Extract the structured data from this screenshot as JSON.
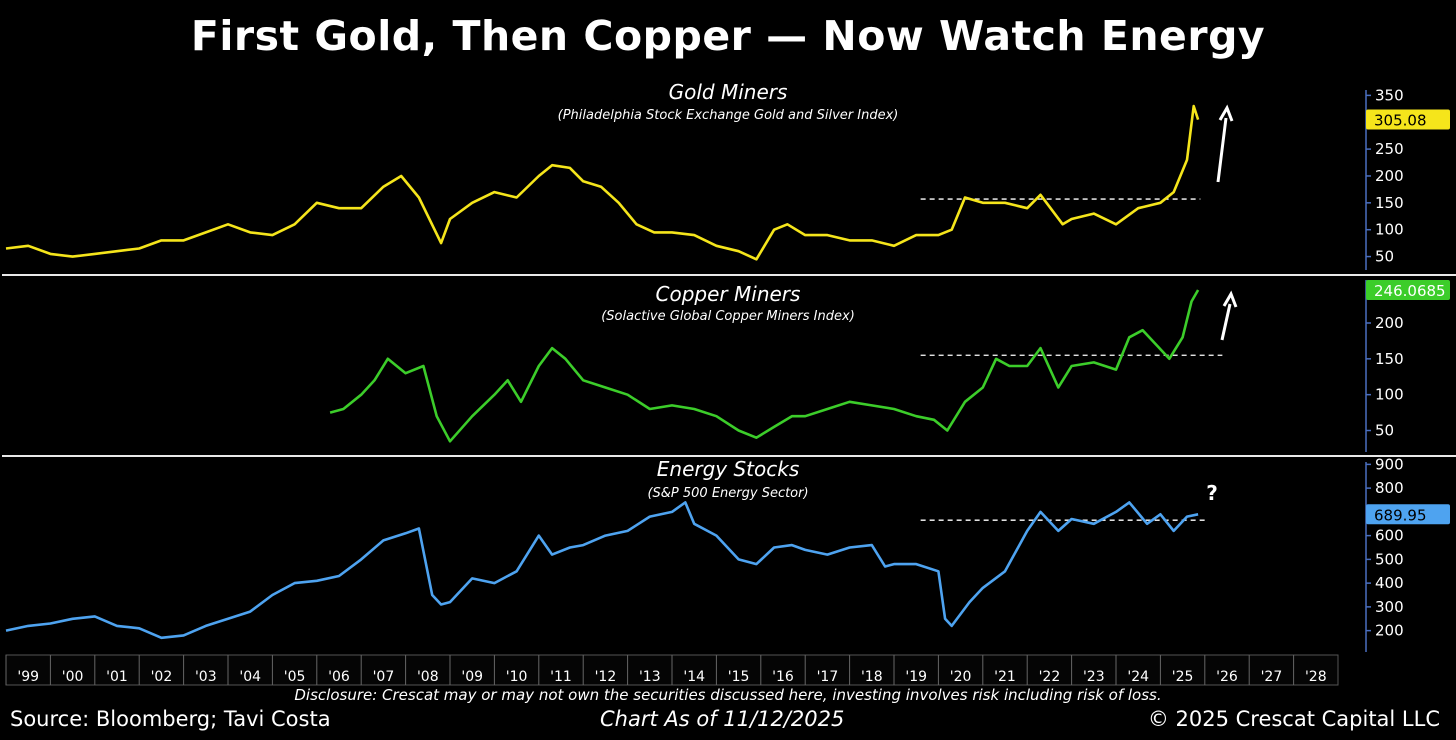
{
  "title": "First Gold, Then Copper — Now Watch Energy",
  "disclosure": "Disclosure: Crescat may or may not own the securities discussed here, investing involves risk including risk of loss.",
  "source": "Source: Bloomberg; Tavi Costa",
  "as_of": "Chart As of 11/12/2025",
  "copyright": "© 2025 Crescat Capital LLC",
  "x_ticks": [
    "'99",
    "'00",
    "'01",
    "'02",
    "'03",
    "'04",
    "'05",
    "'06",
    "'07",
    "'08",
    "'09",
    "'10",
    "'11",
    "'12",
    "'13",
    "'14",
    "'15",
    "'16",
    "'17",
    "'18",
    "'19",
    "'20",
    "'21",
    "'22",
    "'23",
    "'24",
    "'25",
    "'26",
    "'27",
    "'28"
  ],
  "chart_data": [
    {
      "type": "line",
      "title": "Gold Miners",
      "subtitle": "(Philadelphia Stock Exchange Gold and Silver Index)",
      "color": "#f5e51b",
      "last_value": "305.08",
      "y_ticks": [
        50,
        100,
        150,
        200,
        250,
        300,
        350
      ],
      "ylim": [
        25,
        360
      ],
      "resistance": 157,
      "annotation": "up-arrow",
      "x": [
        1999.0,
        1999.5,
        2000.0,
        2000.5,
        2001.0,
        2001.5,
        2002.0,
        2002.5,
        2003.0,
        2003.5,
        2004.0,
        2004.5,
        2005.0,
        2005.5,
        2006.0,
        2006.5,
        2007.0,
        2007.5,
        2007.9,
        2008.3,
        2008.8,
        2009.0,
        2009.5,
        2010.0,
        2010.5,
        2011.0,
        2011.3,
        2011.7,
        2012.0,
        2012.4,
        2012.8,
        2013.2,
        2013.6,
        2014.0,
        2014.5,
        2015.0,
        2015.5,
        2015.9,
        2016.3,
        2016.6,
        2017.0,
        2017.5,
        2018.0,
        2018.5,
        2019.0,
        2019.5,
        2020.0,
        2020.3,
        2020.6,
        2021.0,
        2021.5,
        2022.0,
        2022.3,
        2022.8,
        2023.0,
        2023.5,
        2024.0,
        2024.5,
        2025.0,
        2025.3,
        2025.6,
        2025.75,
        2025.85
      ],
      "y": [
        65,
        70,
        55,
        50,
        55,
        60,
        65,
        80,
        80,
        95,
        110,
        95,
        90,
        110,
        150,
        140,
        140,
        180,
        200,
        160,
        75,
        120,
        150,
        170,
        160,
        200,
        220,
        215,
        190,
        180,
        150,
        110,
        95,
        95,
        90,
        70,
        60,
        45,
        100,
        110,
        90,
        90,
        80,
        80,
        70,
        90,
        90,
        100,
        160,
        150,
        150,
        140,
        165,
        110,
        120,
        130,
        110,
        140,
        150,
        170,
        230,
        330,
        305
      ]
    },
    {
      "type": "line",
      "title": "Copper Miners",
      "subtitle": "(Solactive Global Copper Miners Index)",
      "color": "#3ccd2a",
      "last_value": "246.0685",
      "y_ticks": [
        50,
        100,
        150,
        200
      ],
      "ylim": [
        20,
        260
      ],
      "resistance": 155,
      "annotation": "up-arrow",
      "x": [
        2006.3,
        2006.6,
        2007.0,
        2007.3,
        2007.6,
        2008.0,
        2008.4,
        2008.7,
        2009.0,
        2009.5,
        2010.0,
        2010.3,
        2010.6,
        2011.0,
        2011.3,
        2011.6,
        2012.0,
        2012.5,
        2013.0,
        2013.5,
        2014.0,
        2014.5,
        2015.0,
        2015.5,
        2015.9,
        2016.3,
        2016.7,
        2017.0,
        2017.5,
        2018.0,
        2018.5,
        2019.0,
        2019.5,
        2019.9,
        2020.2,
        2020.6,
        2021.0,
        2021.3,
        2021.6,
        2022.0,
        2022.3,
        2022.7,
        2023.0,
        2023.5,
        2024.0,
        2024.3,
        2024.6,
        2024.9,
        2025.2,
        2025.5,
        2025.7,
        2025.85
      ],
      "y": [
        75,
        80,
        100,
        120,
        150,
        130,
        140,
        70,
        35,
        70,
        100,
        120,
        90,
        140,
        165,
        150,
        120,
        110,
        100,
        80,
        85,
        80,
        70,
        50,
        40,
        55,
        70,
        70,
        80,
        90,
        85,
        80,
        70,
        65,
        50,
        90,
        110,
        150,
        140,
        140,
        165,
        110,
        140,
        145,
        135,
        180,
        190,
        170,
        150,
        180,
        230,
        246
      ]
    },
    {
      "type": "line",
      "title": "Energy Stocks",
      "subtitle": "(S&P 500 Energy Sector)",
      "color": "#4ea3f0",
      "last_value": "689.95",
      "y_ticks": [
        200,
        300,
        400,
        500,
        600,
        700,
        800,
        900
      ],
      "ylim": [
        110,
        910
      ],
      "resistance": 665,
      "annotation": "?",
      "x": [
        1999.0,
        1999.5,
        2000.0,
        2000.5,
        2001.0,
        2001.5,
        2002.0,
        2002.5,
        2003.0,
        2003.5,
        2004.0,
        2004.5,
        2005.0,
        2005.5,
        2006.0,
        2006.5,
        2007.0,
        2007.5,
        2008.0,
        2008.3,
        2008.6,
        2008.8,
        2009.0,
        2009.5,
        2010.0,
        2010.5,
        2011.0,
        2011.3,
        2011.7,
        2012.0,
        2012.5,
        2013.0,
        2013.5,
        2014.0,
        2014.3,
        2014.5,
        2014.8,
        2015.0,
        2015.5,
        2015.9,
        2016.3,
        2016.7,
        2017.0,
        2017.5,
        2018.0,
        2018.5,
        2018.8,
        2019.0,
        2019.5,
        2020.0,
        2020.15,
        2020.3,
        2020.7,
        2021.0,
        2021.5,
        2022.0,
        2022.3,
        2022.7,
        2023.0,
        2023.5,
        2024.0,
        2024.3,
        2024.7,
        2025.0,
        2025.3,
        2025.6,
        2025.85
      ],
      "y": [
        200,
        220,
        230,
        250,
        260,
        220,
        210,
        170,
        180,
        220,
        250,
        280,
        350,
        400,
        410,
        430,
        500,
        580,
        610,
        630,
        350,
        310,
        320,
        420,
        400,
        450,
        600,
        520,
        550,
        560,
        600,
        620,
        680,
        700,
        740,
        650,
        620,
        600,
        500,
        480,
        550,
        560,
        540,
        520,
        550,
        560,
        470,
        480,
        480,
        450,
        250,
        220,
        320,
        380,
        450,
        620,
        700,
        620,
        670,
        650,
        700,
        740,
        650,
        690,
        620,
        680,
        690
      ]
    }
  ]
}
